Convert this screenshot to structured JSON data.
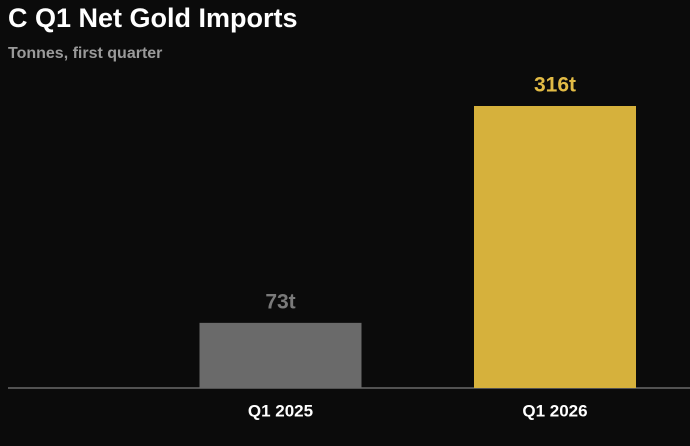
{
  "chart_data": {
    "type": "bar",
    "title": "C Q1 Net Gold Imports",
    "subtitle": "Tonnes, first quarter",
    "categories": [
      "Q1 2025",
      "Q1 2026"
    ],
    "values": [
      73,
      316
    ],
    "value_labels": [
      "73t",
      "316t"
    ],
    "colors": [
      "#6a6a6a",
      "#d6b13c"
    ],
    "label_colors": [
      "#7a7a7a",
      "#e2bb45"
    ]
  }
}
